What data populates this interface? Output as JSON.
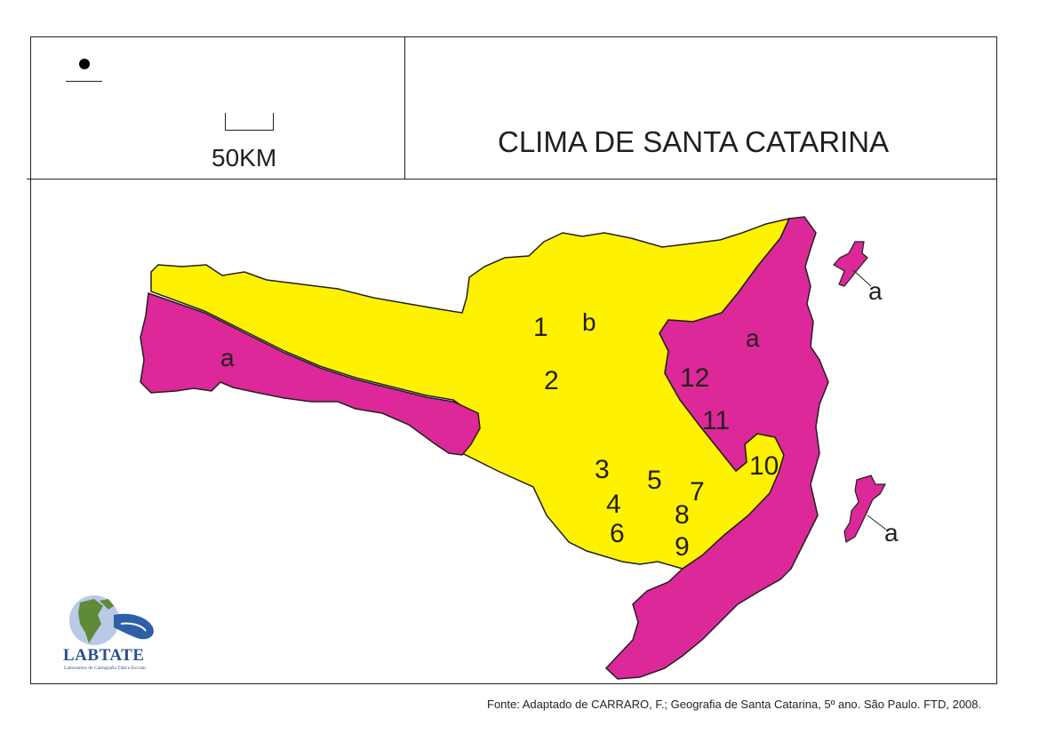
{
  "header": {
    "title": "CLIMA DE SANTA CATARINA",
    "scale_label": "50KM"
  },
  "map": {
    "colors": {
      "zone_a": "#dc2898",
      "zone_b": "#fff200",
      "outline": "#231f20"
    },
    "zone_labels": {
      "a_west": "a",
      "a_east": "a",
      "a_island_north": "a",
      "a_island_south": "a",
      "b": "b"
    },
    "place_numbers": [
      "1",
      "2",
      "3",
      "4",
      "5",
      "6",
      "7",
      "8",
      "9",
      "10",
      "11",
      "12"
    ]
  },
  "logo": {
    "name": "LABTATE",
    "subtitle": "Laboratório de Cartografia Tátil e Escolar"
  },
  "footer": {
    "source": "Fonte: Adaptado de CARRARO, F.; Geografia de Santa Catarina, 5º ano. São Paulo. FTD, 2008."
  }
}
